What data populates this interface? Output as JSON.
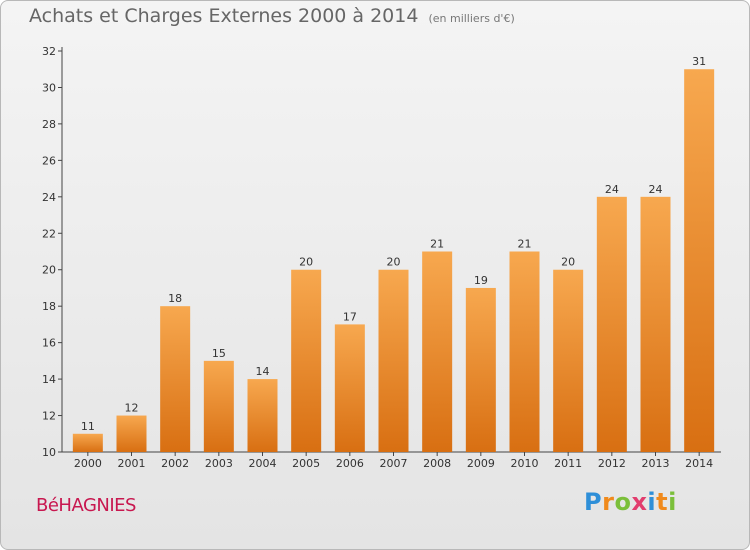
{
  "title": "Achats et Charges Externes 2000 à 2014",
  "unit_note": "(en milliers d'€)",
  "place_name": "BéHAGNIES",
  "logo": {
    "text": "Proxiti",
    "letter_colors": [
      "#2e8fd8",
      "#f08a1c",
      "#7bbf3a",
      "#e23d6e",
      "#2e8fd8",
      "#f08a1c",
      "#7bbf3a"
    ]
  },
  "colors": {
    "bar_top": "#f7a84f",
    "bar_bottom": "#d86f12",
    "axis": "#444444"
  },
  "chart_data": {
    "type": "bar",
    "title": "Achats et Charges Externes 2000 à 2014",
    "subtitle": "(en milliers d'€)",
    "categories": [
      "2000",
      "2001",
      "2002",
      "2003",
      "2004",
      "2005",
      "2006",
      "2007",
      "2008",
      "2009",
      "2010",
      "2011",
      "2012",
      "2013",
      "2014"
    ],
    "values": [
      11,
      12,
      18,
      15,
      14,
      20,
      17,
      20,
      21,
      19,
      21,
      20,
      24,
      24,
      31
    ],
    "ylim": [
      10,
      32
    ],
    "yticks": [
      10,
      12,
      14,
      16,
      18,
      20,
      22,
      24,
      26,
      28,
      30,
      32
    ],
    "grid": false,
    "data_labels": true
  }
}
